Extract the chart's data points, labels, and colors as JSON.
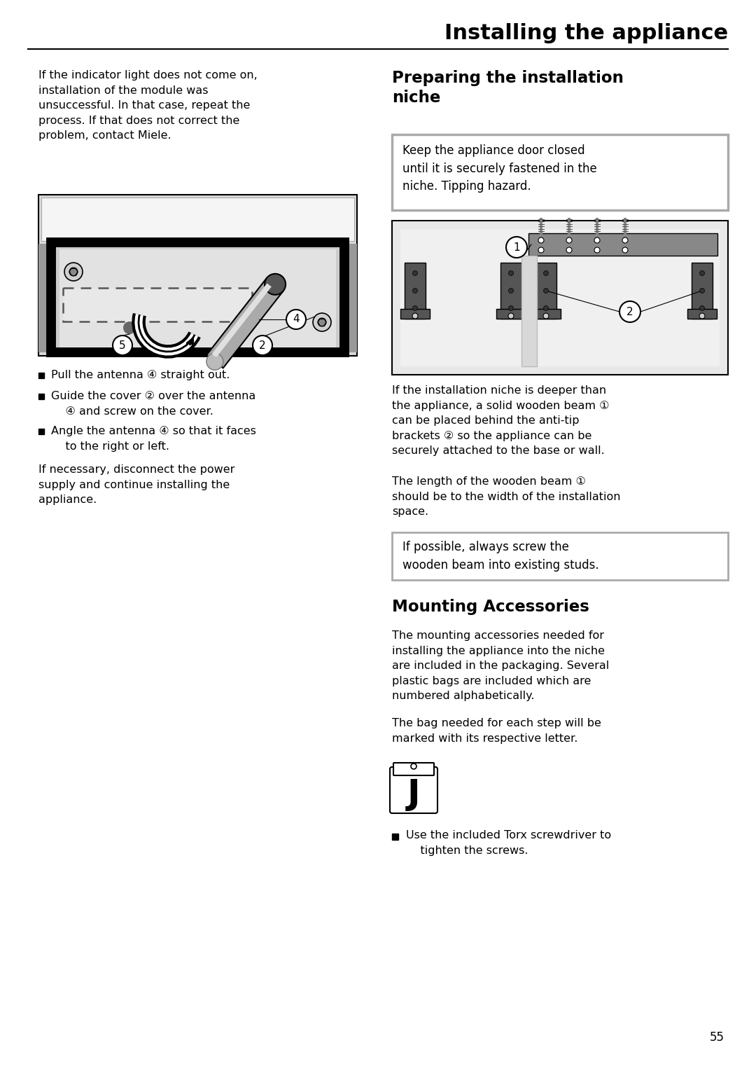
{
  "page_title": "Installing the appliance",
  "page_number": "55",
  "bg_color": "#ffffff",
  "left_col_text": "If the indicator light does not come on,\ninstallation of the module was\nunsuccessful. In that case, repeat the\nprocess. If that does not correct the\nproblem, contact Miele.",
  "bullet_items": [
    "Pull the antenna ④ straight out.",
    "Guide the cover ② over the antenna\n    ④ and screw on the cover.",
    "Angle the antenna ④ so that it faces\n    to the right or left."
  ],
  "left_bottom_text": "If necessary, disconnect the power\nsupply and continue installing the\nappliance.",
  "right_section_title": "Preparing the installation\nniche",
  "warning_box_text": "Keep the appliance door closed\nuntil it is securely fastened in the\nniche. Tipping hazard.",
  "niche_desc1": "If the installation niche is deeper than\nthe appliance, a solid wooden beam ①\ncan be placed behind the anti-tip\nbrackets ② so the appliance can be\nsecurely attached to the base or wall.",
  "niche_desc2": "The length of the wooden beam ①\nshould be to the width of the installation\nspace.",
  "info_box_text": "If possible, always screw the\nwooden beam into existing studs.",
  "mounting_title": "Mounting Accessories",
  "mounting_desc1": "The mounting accessories needed for\ninstalling the appliance into the niche\nare included in the packaging. Several\nplastic bags are included which are\nnumbered alphabetically.",
  "mounting_desc2": "The bag needed for each step will be\nmarked with its respective letter.",
  "bullet_torx": "Use the included Torx screwdriver to\n    tighten the screws."
}
